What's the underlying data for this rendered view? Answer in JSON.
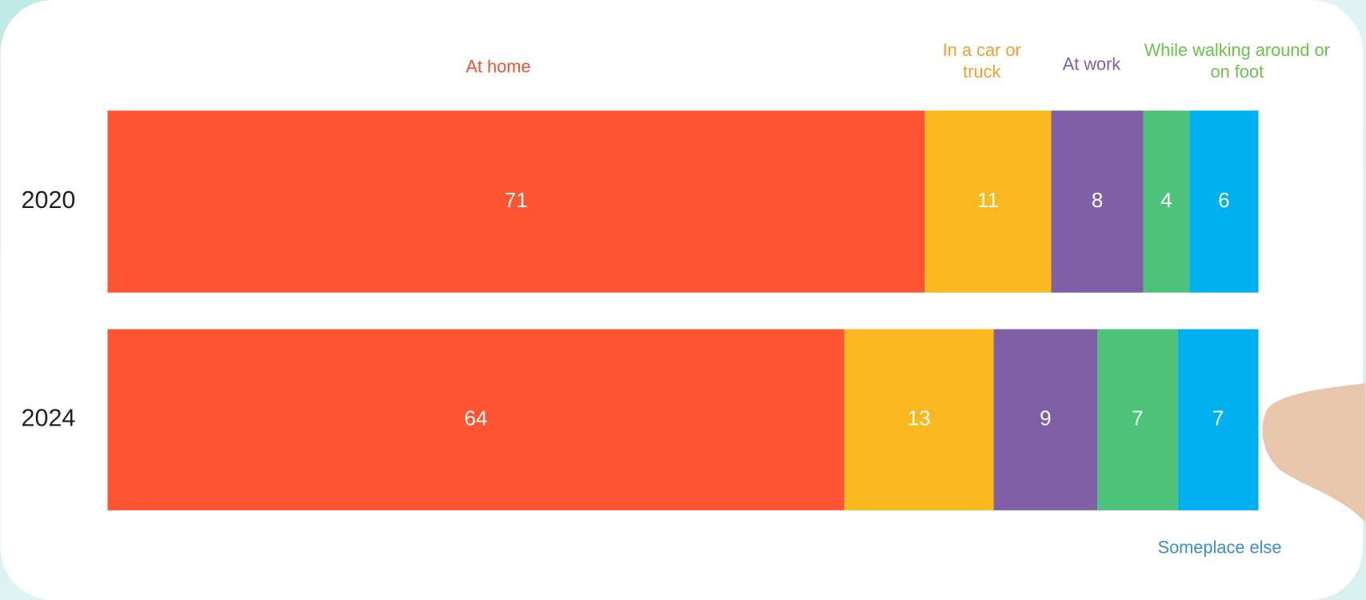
{
  "chart_data": {
    "type": "stacked-bar-horizontal",
    "categories": [
      "2020",
      "2024"
    ],
    "series": [
      {
        "name": "At home",
        "color": "#FF5533",
        "values": [
          71,
          64
        ]
      },
      {
        "name": "In a car or truck",
        "color": "#F9B81E",
        "values": [
          11,
          13
        ]
      },
      {
        "name": "At work",
        "color": "#7F5FA6",
        "values": [
          8,
          9
        ]
      },
      {
        "name": "While walking around or on foot",
        "color": "#4DC37A",
        "values": [
          4,
          7
        ]
      },
      {
        "name": "Someplace else",
        "color": "#00B0F0",
        "values": [
          6,
          7
        ]
      }
    ],
    "xlim": [
      0,
      100
    ]
  }
}
